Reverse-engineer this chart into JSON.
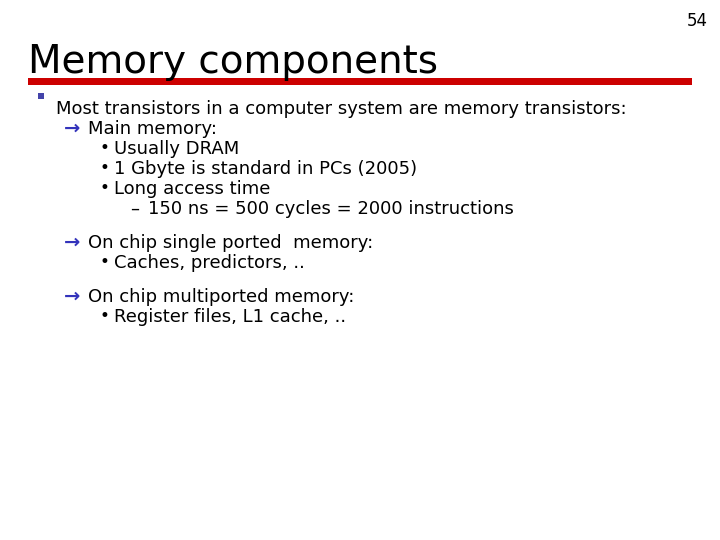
{
  "slide_number": "54",
  "title": "Memory components",
  "background_color": "#ffffff",
  "title_color": "#000000",
  "title_fontsize": 28,
  "red_line_color": "#cc0000",
  "red_line_thickness": 7,
  "slide_number_color": "#000000",
  "slide_number_fontsize": 12,
  "bullet_color": "#4444aa",
  "arrow_color": "#3333bb",
  "content_fontsize": 13,
  "content": [
    {
      "level": 0,
      "type": "bullet",
      "text": "Most transistors in a computer system are memory transistors:"
    },
    {
      "level": 1,
      "type": "arrow",
      "text": "Main memory:"
    },
    {
      "level": 2,
      "type": "dot",
      "text": "Usually DRAM"
    },
    {
      "level": 2,
      "type": "dot",
      "text": "1 Gbyte is standard in PCs (2005)"
    },
    {
      "level": 2,
      "type": "dot",
      "text": "Long access time"
    },
    {
      "level": 3,
      "type": "dash",
      "text": "150 ns = 500 cycles = 2000 instructions"
    },
    {
      "level": 1,
      "type": "arrow",
      "text": "On chip single ported  memory:",
      "spacer_before": true
    },
    {
      "level": 2,
      "type": "dot",
      "text": "Caches, predictors, .."
    },
    {
      "level": 1,
      "type": "arrow",
      "text": "On chip multiported memory:",
      "spacer_before": true
    },
    {
      "level": 2,
      "type": "dot",
      "text": "Register files, L1 cache, .."
    }
  ]
}
